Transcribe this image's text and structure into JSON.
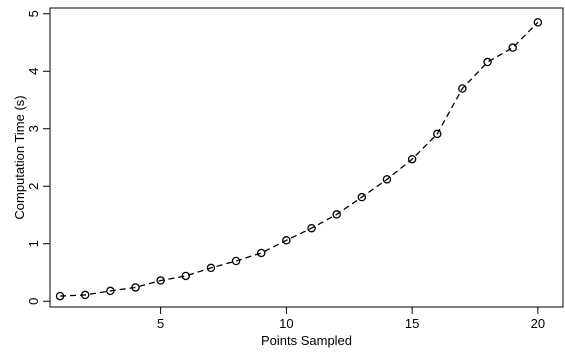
{
  "chart_data": {
    "type": "line",
    "title": "",
    "xlabel": "Points Sampled",
    "ylabel": "Computation Time (s)",
    "xlim": [
      0.6,
      21.0
    ],
    "ylim": [
      -0.1,
      5.1
    ],
    "xticks": [
      5,
      10,
      15,
      20
    ],
    "yticks": [
      0,
      1,
      2,
      3,
      4,
      5
    ],
    "grid": false,
    "series": [
      {
        "style": "dashed line with open circle markers",
        "x": [
          1,
          2,
          3,
          4,
          5,
          6,
          7,
          8,
          9,
          10,
          11,
          12,
          13,
          14,
          15,
          16,
          17,
          18,
          19,
          20
        ],
        "y": [
          0.09,
          0.11,
          0.18,
          0.24,
          0.36,
          0.44,
          0.58,
          0.7,
          0.84,
          1.06,
          1.27,
          1.51,
          1.81,
          2.12,
          2.47,
          2.91,
          3.7,
          4.16,
          4.41,
          4.85
        ]
      }
    ]
  }
}
